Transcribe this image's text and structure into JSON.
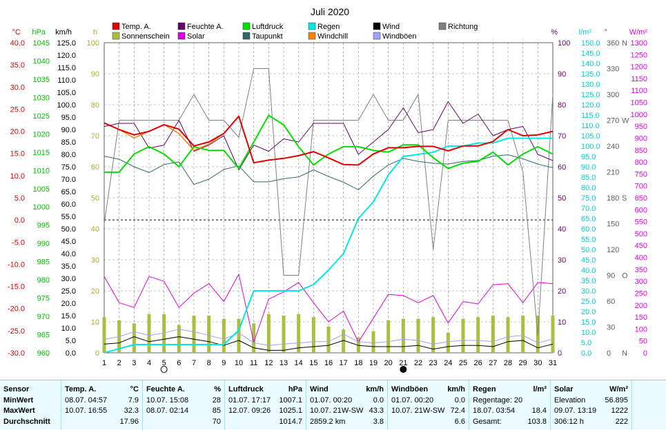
{
  "title": "Juli 2020",
  "axis_units": {
    "temp": "°C",
    "pressure": "hPa",
    "wind": "km/h",
    "sun": "h",
    "humidity": "%",
    "rain": "l/m²",
    "direction": "°",
    "solar": "W/m²"
  },
  "axis_ticks": {
    "temp": [
      "40.0",
      "35.0",
      "30.0",
      "25.0",
      "20.0",
      "15.0",
      "10.0",
      "5.0",
      "0.0",
      "-5.0",
      "-10.0",
      "-15.0",
      "-20.0",
      "-25.0",
      "-30.0"
    ],
    "pressure": [
      "1045",
      "1040",
      "1035",
      "1030",
      "1025",
      "1020",
      "1015",
      "1010",
      "1005",
      "1000",
      "995",
      "990",
      "985",
      "980",
      "975",
      "970",
      "965",
      "960"
    ],
    "wind": [
      "125.0",
      "120.0",
      "115.0",
      "110.0",
      "105.0",
      "100.0",
      "95.0",
      "90.0",
      "85.0",
      "80.0",
      "75.0",
      "70.0",
      "65.0",
      "60.0",
      "55.0",
      "50.0",
      "45.0",
      "40.0",
      "35.0",
      "30.0",
      "25.0",
      "20.0",
      "15.0",
      "10.0",
      "5.0",
      "0.0"
    ],
    "sun": [
      "100",
      "90",
      "80",
      "70",
      "60",
      "50",
      "40",
      "30",
      "20",
      "10",
      "0"
    ],
    "humidity": [
      "100",
      "90",
      "80",
      "70",
      "60",
      "50",
      "40",
      "30",
      "20",
      "10",
      "0"
    ],
    "rain": [
      "150.0",
      "145.0",
      "140.0",
      "135.0",
      "130.0",
      "125.0",
      "120.0",
      "115.0",
      "110.0",
      "105.0",
      "100.0",
      "95.0",
      "90.0",
      "85.0",
      "80.0",
      "75.0",
      "70.0",
      "65.0",
      "60.0",
      "55.0",
      "50.0",
      "45.0",
      "40.0",
      "35.0",
      "30.0",
      "25.0",
      "20.0",
      "15.0",
      "10.0",
      "5.0",
      "0.0"
    ],
    "direction": [
      "360",
      "330",
      "300",
      "270",
      "240",
      "210",
      "180",
      "150",
      "120",
      "90",
      "60",
      "30",
      "0"
    ],
    "direction_letters": [
      "N",
      "",
      "",
      "W",
      "",
      "",
      "S",
      "",
      "",
      "O",
      "",
      "",
      "N"
    ],
    "solar": [
      "1300",
      "1250",
      "1200",
      "1150",
      "1100",
      "1050",
      "1000",
      "950",
      "900",
      "850",
      "800",
      "750",
      "700",
      "650",
      "600",
      "550",
      "500",
      "450",
      "400",
      "350",
      "300",
      "250",
      "200",
      "150",
      "100",
      "50",
      "0"
    ],
    "days": [
      "1",
      "2",
      "3",
      "4",
      "5",
      "6",
      "7",
      "8",
      "9",
      "10",
      "11",
      "12",
      "13",
      "14",
      "15",
      "16",
      "17",
      "18",
      "19",
      "20",
      "21",
      "22",
      "23",
      "24",
      "25",
      "26",
      "27",
      "28",
      "29",
      "30",
      "31"
    ]
  },
  "legend": [
    {
      "label": "Temp. A.",
      "color": "#e00000"
    },
    {
      "label": "Feuchte A.",
      "color": "#6a006a"
    },
    {
      "label": "Luftdruck",
      "color": "#00e000"
    },
    {
      "label": "Regen",
      "color": "#00e8e8"
    },
    {
      "label": "Wind",
      "color": "#000000"
    },
    {
      "label": "Richtung",
      "color": "#808080"
    },
    {
      "label": "Sonnenschein",
      "color": "#a8c040"
    },
    {
      "label": "Solar",
      "color": "#e000e0"
    },
    {
      "label": "Taupunkt",
      "color": "#306868"
    },
    {
      "label": "Windchill",
      "color": "#ff8000"
    },
    {
      "label": "Windböen",
      "color": "#a0a0ff"
    }
  ],
  "chart_data": {
    "type": "line",
    "title": "Juli 2020",
    "x": [
      1,
      2,
      3,
      4,
      5,
      6,
      7,
      8,
      9,
      10,
      11,
      12,
      13,
      14,
      15,
      16,
      17,
      18,
      19,
      20,
      21,
      22,
      23,
      24,
      25,
      26,
      27,
      28,
      29,
      30,
      31
    ],
    "moon_phases": [
      {
        "day": 5,
        "phase": "full"
      },
      {
        "day": 21,
        "phase": "new"
      }
    ],
    "series": [
      {
        "name": "Temp. A.",
        "axis": "temp",
        "color": "#e00000",
        "values": [
          21.9,
          20.4,
          19.2,
          20.0,
          21.5,
          20.5,
          16.7,
          17.6,
          19.5,
          23.4,
          12.9,
          13.5,
          13.9,
          14.5,
          15.4,
          14.0,
          12.5,
          12.4,
          14.9,
          16.3,
          16.3,
          16.6,
          16.6,
          15.6,
          16.7,
          16.7,
          17.7,
          20.4,
          19.0,
          19.2,
          20.0
        ]
      },
      {
        "name": "Windchill",
        "axis": "temp",
        "color": "#ff8000",
        "values": [
          21.9,
          20.4,
          18.5,
          20.0,
          21.5,
          19.5,
          15.7,
          17.1,
          19.5,
          23.4,
          12.9,
          13.5,
          13.9,
          14.5,
          15.4,
          14.0,
          12.5,
          12.4,
          14.9,
          16.3,
          16.3,
          16.6,
          16.6,
          15.6,
          16.7,
          16.7,
          17.7,
          20.4,
          19.0,
          19.2,
          20.0
        ]
      },
      {
        "name": "Taupunkt",
        "axis": "temp",
        "color": "#306868",
        "values": [
          14.4,
          13.7,
          12.0,
          10.7,
          12.5,
          13.1,
          8.0,
          9.2,
          11.4,
          12.2,
          8.6,
          8.6,
          9.3,
          9.7,
          11.3,
          9.8,
          8.5,
          6.8,
          9.9,
          12.4,
          13.9,
          13.2,
          12.8,
          12.6,
          13.2,
          13.4,
          14.4,
          14.7,
          13.8,
          12.6,
          11.8
        ]
      },
      {
        "name": "Feuchte A.",
        "axis": "humidity",
        "color": "#6a006a",
        "values": [
          73,
          74,
          74,
          66,
          67,
          75,
          65,
          67,
          70,
          59,
          67,
          65,
          69,
          68,
          74,
          74,
          74,
          64,
          68,
          72,
          79,
          71,
          72,
          81,
          74,
          77,
          70,
          72,
          73,
          64,
          62
        ]
      },
      {
        "name": "Luftdruck",
        "axis": "pressure",
        "color": "#00e000",
        "values": [
          1009.5,
          1009.5,
          1014.5,
          1016.5,
          1014.5,
          1011.0,
          1016.5,
          1015.5,
          1015.5,
          1010.5,
          1017.8,
          1025.1,
          1022.5,
          1016.5,
          1011.5,
          1014.5,
          1016.5,
          1016.5,
          1015.5,
          1015.0,
          1017.0,
          1017.0,
          1013.5,
          1010.5,
          1012.0,
          1012.5,
          1015.0,
          1011.5,
          1014.5,
          1016.5,
          1014.5
        ]
      },
      {
        "name": "Regen",
        "axis": "rain",
        "color": "#00e8e8",
        "cumulative": true,
        "values": [
          0,
          2.0,
          4.0,
          4.0,
          4.0,
          4.0,
          4.0,
          4.0,
          4.0,
          11.0,
          30.0,
          30.0,
          30.0,
          30.0,
          33.0,
          40.0,
          48.0,
          65.0,
          73.0,
          86.0,
          95.0,
          96.0,
          97.0,
          100.0,
          100.0,
          101.5,
          101.5,
          103.8,
          103.8,
          103.8,
          103.8
        ]
      },
      {
        "name": "Wind",
        "axis": "wind",
        "color": "#000000",
        "values": [
          3.5,
          4.0,
          6.5,
          4.5,
          5.5,
          6.5,
          5.5,
          4.5,
          3.0,
          5.0,
          2.0,
          1.0,
          1.0,
          2.0,
          2.5,
          3.0,
          5.0,
          3.0,
          2.5,
          2.5,
          2.5,
          3.0,
          1.5,
          2.5,
          3.0,
          3.0,
          2.5,
          4.5,
          5.0,
          2.0,
          3.5
        ]
      },
      {
        "name": "Windböen",
        "axis": "wind",
        "color": "#a0a0ff",
        "values": [
          5.5,
          6.5,
          8.5,
          7.0,
          8.0,
          9.5,
          8.5,
          7.0,
          5.5,
          8.0,
          4.0,
          3.0,
          3.5,
          4.0,
          4.5,
          4.5,
          7.5,
          4.5,
          4.0,
          4.5,
          5.5,
          5.0,
          3.5,
          4.5,
          5.0,
          5.0,
          4.5,
          6.5,
          7.0,
          4.0,
          5.5
        ]
      },
      {
        "name": "Richtung",
        "axis": "direction",
        "color": "#808080",
        "values": [
          150,
          270,
          270,
          270,
          270,
          270,
          300,
          270,
          270,
          250,
          330,
          330,
          90,
          90,
          270,
          270,
          270,
          270,
          300,
          270,
          270,
          300,
          120,
          270,
          270,
          270,
          270,
          270,
          210,
          20,
          300
        ]
      },
      {
        "name": "Solar",
        "axis": "solar",
        "color": "#e000e0",
        "values": [
          320,
          210,
          190,
          320,
          300,
          190,
          250,
          290,
          215,
          330,
          45,
          225,
          255,
          295,
          210,
          130,
          175,
          45,
          145,
          245,
          240,
          210,
          240,
          125,
          215,
          205,
          285,
          290,
          210,
          295,
          290
        ]
      },
      {
        "name": "Sonnenschein",
        "axis": "sun",
        "color": "#a8c040",
        "type": "bar",
        "values": [
          11.5,
          10.5,
          9.5,
          12.5,
          12.5,
          9.0,
          12.0,
          12.0,
          11.0,
          11.0,
          9.5,
          12.5,
          12.0,
          12.5,
          11.5,
          8.5,
          7.5,
          5.0,
          7.0,
          10.5,
          11.0,
          11.0,
          11.5,
          6.5,
          11.0,
          11.5,
          12.0,
          11.5,
          12.0,
          12.0,
          12.0
        ]
      }
    ],
    "axes": {
      "temp": {
        "min": -30,
        "max": 40
      },
      "pressure": {
        "min": 960,
        "max": 1045
      },
      "wind": {
        "min": 0,
        "max": 125
      },
      "sun": {
        "min": 0,
        "max": 100
      },
      "humidity": {
        "min": 0,
        "max": 100
      },
      "rain": {
        "min": 0,
        "max": 150
      },
      "direction": {
        "min": 0,
        "max": 360
      },
      "solar": {
        "min": 0,
        "max": 1300
      }
    }
  },
  "table": {
    "row_labels": [
      "Sensor",
      "MinWert",
      "MaxWert",
      "Durchschnitt"
    ],
    "columns": [
      {
        "header": "Temp. A.",
        "unit": "°C",
        "min_time": "08.07.  04:57",
        "min_val": "7.9",
        "max_time": "10.07.  16:55",
        "max_val": "32.3",
        "avg_label": "",
        "avg_val": "17.96"
      },
      {
        "header": "Feuchte A.",
        "unit": "%",
        "min_time": "10.07.  15:08",
        "min_val": "28",
        "max_time": "08.07.  02:14",
        "max_val": "85",
        "avg_label": "",
        "avg_val": "70"
      },
      {
        "header": "Luftdruck",
        "unit": "hPa",
        "min_time": "01.07.  17:17",
        "min_val": "1007.1",
        "max_time": "12.07.  09:26",
        "max_val": "1025.1",
        "avg_label": "",
        "avg_val": "1014.7"
      },
      {
        "header": "Wind",
        "unit": "km/h",
        "min_time": "01.07.  00:20",
        "min_val": "0.0",
        "max_time": "10.07.  21W-SW",
        "max_val": "43.3",
        "avg_label": "2859.2 km",
        "avg_val": "3.8"
      },
      {
        "header": "Windböen",
        "unit": "km/h",
        "min_time": "01.07.  00:20",
        "min_val": "0.0",
        "max_time": "10.07.  21W-SW",
        "max_val": "72.4",
        "avg_label": "",
        "avg_val": "6.6"
      },
      {
        "header": "Regen",
        "unit": "l/m²",
        "min_time": "Regentage: 20",
        "min_val": "",
        "max_time": "18.07.  03:54",
        "max_val": "18.4",
        "avg_label": "Gesamt:",
        "avg_val": "103.8"
      },
      {
        "header": "Solar",
        "unit": "W/m²",
        "min_time": "Elevation",
        "min_val": "56.895",
        "max_time": "09.07.  13:19",
        "max_val": "1222",
        "avg_label": "306:12 h",
        "avg_val": "222"
      }
    ]
  }
}
